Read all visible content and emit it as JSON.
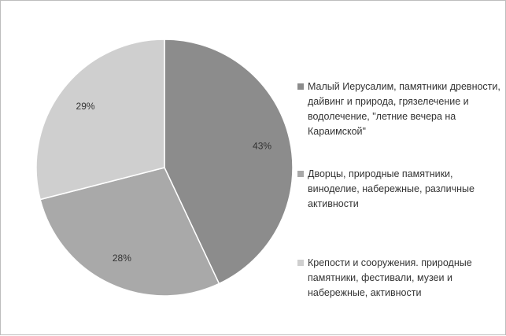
{
  "chart_data": {
    "type": "pie",
    "title": "",
    "slices": [
      {
        "label": "Малый Иерусалим, памятники древности, дайвинг и природа, грязелечение и водолечение, \"летние вечера на Караимской\"",
        "value": 43,
        "display": "43%",
        "color": "#8c8c8c"
      },
      {
        "label": "Дворцы, природные памятники, виноделие, набережные, различные активности",
        "value": 28,
        "display": "28%",
        "color": "#a9a9a9"
      },
      {
        "label": "Крепости и сооружения. природные памятники, фестивали, музеи и набережные, активности",
        "value": 29,
        "display": "29%",
        "color": "#cfcfcf"
      }
    ],
    "legend_position": "right",
    "start_angle": "top",
    "direction": "clockwise"
  }
}
